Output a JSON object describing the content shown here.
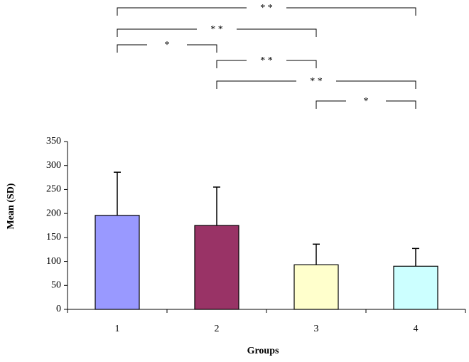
{
  "chart_data": {
    "type": "bar",
    "x_label": "Groups",
    "y_label": "Mean (SD)",
    "categories": [
      "1",
      "2",
      "3",
      "4"
    ],
    "values": [
      196,
      175,
      93,
      90
    ],
    "errors": [
      90,
      80,
      43,
      37
    ],
    "colors": [
      "#9999ff",
      "#993366",
      "#ffffcc",
      "#ccffff"
    ],
    "ylim": [
      0,
      350
    ],
    "yticks": [
      0,
      50,
      100,
      150,
      200,
      250,
      300,
      350
    ],
    "grid": false,
    "comparisons": [
      {
        "groups": [
          "1",
          "4"
        ],
        "label": "* *"
      },
      {
        "groups": [
          "1",
          "3"
        ],
        "label": "* *"
      },
      {
        "groups": [
          "1",
          "2"
        ],
        "label": "*"
      },
      {
        "groups": [
          "2",
          "3"
        ],
        "label": "* *"
      },
      {
        "groups": [
          "2",
          "4"
        ],
        "label": "* *"
      },
      {
        "groups": [
          "3",
          "4"
        ],
        "label": "*"
      }
    ]
  }
}
